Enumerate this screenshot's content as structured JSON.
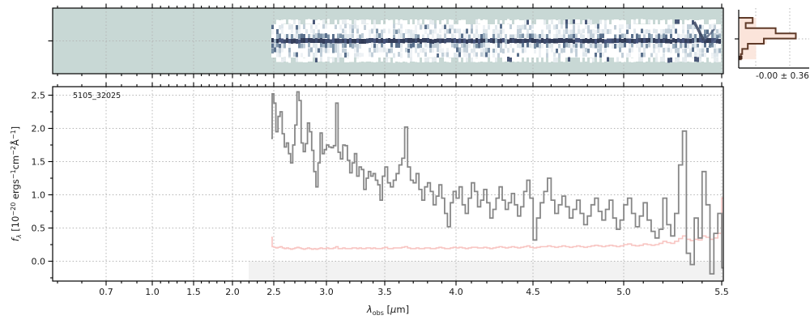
{
  "source_id": "5105_32025",
  "histogram_annotation": "-0.00 ± 0.36",
  "colors": {
    "panel2d_background": "#c8d8d5",
    "trace_dark": [
      "#2f3a55",
      "#353f5c",
      "#46537a",
      "#3d4a6b",
      "#333d5a"
    ],
    "noise_mid": [
      "#7d93a8",
      "#9fb2c2",
      "#5a708c"
    ],
    "noise_light": [
      "#dfe7ec",
      "#c2cfd9",
      "#eef2f5"
    ],
    "flux_line": "#878787",
    "error_line": "#f8c5c2",
    "hist_outline": "#5f3a28",
    "hist_fill": "#fbe4da",
    "grid": "#b5b5b5",
    "below_zero_band": "#f2f2f2",
    "spine": "#000000"
  },
  "x_axis": {
    "label_plain": "λ_obs [μm]",
    "label_segments": [
      {
        "t": "λ",
        "i": true
      },
      {
        "t": "obs",
        "sub": true
      },
      {
        "t": " ["
      },
      {
        "t": "μ",
        "i": true
      },
      {
        "t": "m]"
      }
    ],
    "tick_labels": [
      "0.7",
      "1.0",
      "1.5",
      "2.0",
      "2.5",
      "3.0",
      "3.5",
      "4.0",
      "4.5",
      "5.0",
      "5.5"
    ],
    "tick_values": [
      0.7,
      1.0,
      1.5,
      2.0,
      2.5,
      3.0,
      3.5,
      4.0,
      4.5,
      5.0,
      5.5
    ],
    "minor_step": 0.1
  },
  "y_axis": {
    "label_plain": "f_λ [10^−20 ergs^−1cm^−2Å^−1]",
    "label_segments": [
      {
        "t": "f",
        "i": true
      },
      {
        "t": "λ",
        "sub": true,
        "i": true
      },
      {
        "t": " [10"
      },
      {
        "t": "−20",
        "sup": true
      },
      {
        "t": " ergs",
        "i": false
      },
      {
        "t": "−1",
        "sup": true
      },
      {
        "t": "cm"
      },
      {
        "t": "−2",
        "sup": true
      },
      {
        "t": "Å"
      },
      {
        "t": "−1",
        "sup": true
      },
      {
        "t": "]"
      }
    ],
    "tick_labels": [
      "0.0",
      "0.5",
      "1.0",
      "1.5",
      "2.0",
      "2.5"
    ],
    "tick_values": [
      0.0,
      0.5,
      1.0,
      1.5,
      2.0,
      2.5
    ],
    "minor_values": [
      -0.25,
      0.25,
      0.75,
      1.25,
      1.75,
      2.25
    ]
  },
  "chart_data": [
    {
      "id": "spectrum_1d",
      "type": "line",
      "style": "steps-mid",
      "title": "5105_32025",
      "xlabel": "λ_obs [μm]",
      "ylabel": "f_λ [10^−20 ergs^−1cm^−2Å^−1]",
      "xlim": [
        0.48,
        5.51
      ],
      "ylim": [
        -0.3,
        2.63
      ],
      "grid": true,
      "x_start": 2.47,
      "x_step": 0.02,
      "series": [
        {
          "name": "flux",
          "values": [
            1.85,
            2.52,
            2.38,
            1.95,
            2.18,
            2.25,
            1.92,
            1.72,
            1.78,
            1.62,
            1.48,
            1.75,
            2.05,
            2.55,
            2.42,
            1.78,
            1.65,
            1.77,
            2.08,
            1.95,
            1.67,
            1.35,
            1.12,
            1.48,
            1.93,
            1.62,
            1.68,
            1.75,
            1.72,
            1.71,
            1.74,
            2.38,
            1.64,
            1.54,
            1.75,
            1.74,
            1.52,
            1.33,
            1.48,
            1.62,
            1.28,
            1.42,
            1.38,
            1.08,
            1.25,
            1.35,
            1.28,
            1.32,
            1.22,
            1.15,
            0.92,
            1.28,
            1.42,
            1.18,
            1.12,
            1.22,
            1.32,
            1.45,
            1.55,
            2.02,
            1.42,
            1.22,
            1.18,
            1.32,
            1.08,
            0.92,
            1.12,
            1.18,
            1.05,
            0.85,
            0.98,
            1.15,
            0.95,
            0.72,
            0.52,
            0.88,
            1.05,
            0.95,
            1.12,
            0.85,
            0.72,
            0.95,
            1.18,
            1.05,
            0.82,
            0.92,
            1.08,
            0.88,
            0.65,
            0.78,
            0.95,
            1.12,
            0.92,
            0.78,
            0.88,
            1.02,
            0.85,
            0.68,
            0.82,
            1.05,
            1.22,
            0.95,
            0.32,
            0.65,
            0.88,
            1.05,
            1.25,
            0.92,
            0.72,
            0.85,
            0.98,
            0.82,
            0.65,
            0.78,
            0.92,
            0.72,
            0.55,
            0.68,
            0.85,
            0.95,
            0.75,
            0.62,
            0.78,
            0.92,
            0.65,
            0.48,
            0.62,
            0.85,
            0.95,
            0.72,
            0.52,
            0.68,
            0.88,
            0.62,
            0.45,
            0.35,
            0.48,
            0.95,
            0.55,
            0.38,
            0.72,
            1.45,
            1.96,
            0.12,
            -0.05,
            0.65,
            0.35,
            1.35,
            0.85,
            -0.19,
            0.42,
            0.72,
            -0.1
          ]
        },
        {
          "name": "error",
          "values": [
            0.36,
            0.22,
            0.21,
            0.2,
            0.21,
            0.22,
            0.2,
            0.19,
            0.2,
            0.19,
            0.18,
            0.19,
            0.2,
            0.21,
            0.2,
            0.19,
            0.18,
            0.19,
            0.2,
            0.19,
            0.18,
            0.19,
            0.18,
            0.19,
            0.2,
            0.19,
            0.19,
            0.2,
            0.19,
            0.19,
            0.2,
            0.22,
            0.19,
            0.19,
            0.2,
            0.19,
            0.19,
            0.19,
            0.2,
            0.2,
            0.19,
            0.2,
            0.19,
            0.19,
            0.2,
            0.2,
            0.19,
            0.2,
            0.19,
            0.19,
            0.19,
            0.2,
            0.21,
            0.19,
            0.19,
            0.2,
            0.2,
            0.2,
            0.21,
            0.22,
            0.2,
            0.19,
            0.19,
            0.2,
            0.19,
            0.19,
            0.2,
            0.2,
            0.19,
            0.19,
            0.2,
            0.21,
            0.2,
            0.19,
            0.19,
            0.2,
            0.21,
            0.2,
            0.21,
            0.2,
            0.19,
            0.2,
            0.21,
            0.21,
            0.2,
            0.2,
            0.21,
            0.2,
            0.19,
            0.2,
            0.21,
            0.22,
            0.21,
            0.2,
            0.21,
            0.22,
            0.21,
            0.2,
            0.21,
            0.22,
            0.23,
            0.21,
            0.2,
            0.21,
            0.22,
            0.22,
            0.23,
            0.22,
            0.21,
            0.22,
            0.23,
            0.22,
            0.21,
            0.22,
            0.23,
            0.22,
            0.21,
            0.22,
            0.23,
            0.24,
            0.23,
            0.22,
            0.23,
            0.24,
            0.23,
            0.22,
            0.23,
            0.25,
            0.26,
            0.24,
            0.23,
            0.24,
            0.26,
            0.25,
            0.24,
            0.25,
            0.27,
            0.3,
            0.28,
            0.27,
            0.3,
            0.34,
            0.38,
            0.33,
            0.31,
            0.33,
            0.32,
            0.38,
            0.36,
            0.33,
            0.35,
            0.42,
            0.95
          ]
        }
      ]
    },
    {
      "id": "spectrum_2d",
      "type": "heatmap",
      "description": "2D rectified spectrum cutout; teal background, white exposure band from 2.47 to 5.5 μm with blue-gray noise and a dark central trace; diagonal artifacts near 5.3–5.5 μm",
      "x_range": [
        2.47,
        5.5
      ],
      "shares_x_with": "spectrum_1d"
    },
    {
      "id": "residual_hist",
      "type": "bar",
      "orientation": "horizontal",
      "annotation": "-0.00 ± 0.36",
      "mean": -0.0,
      "sigma": 0.36,
      "bins_top_to_bottom": [
        0.2,
        0.1,
        0.53,
        0.82,
        0.36,
        0.13,
        0.05,
        0.03
      ],
      "fill_bins_top_to_bottom": [
        0.25,
        0.25,
        0.53,
        0.82,
        0.4,
        0.25,
        0.25,
        0.25
      ]
    }
  ]
}
